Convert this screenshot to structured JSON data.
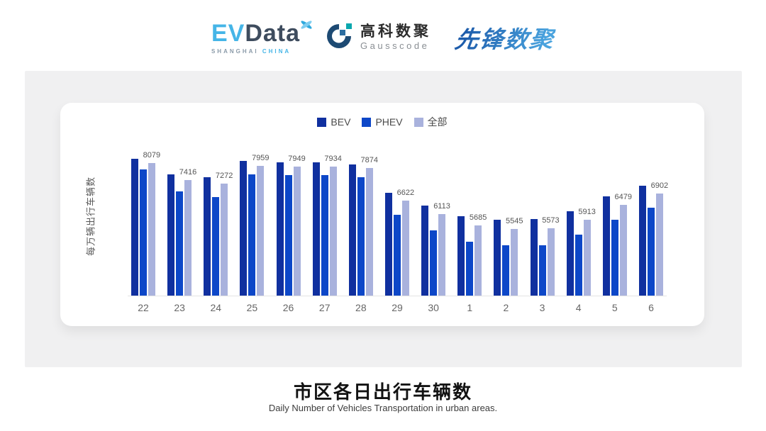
{
  "header": {
    "evdata_logo": {
      "ev": "EV",
      "data": "Data",
      "sub_left": "SHANGHAI",
      "sub_right": "CHINA"
    },
    "gausscode_logo": {
      "cn_name": "高科数聚",
      "en_name": "Gausscode"
    },
    "pioneer_logo": {
      "text": "先锋数聚"
    }
  },
  "chart_data": {
    "type": "bar",
    "title": "市区各日出行车辆数",
    "subtitle": "Daily Number of Vehicles Transportation in urban areas.",
    "ylabel": "每万辆出行车辆数",
    "xlabel": "",
    "categories": [
      "22",
      "23",
      "24",
      "25",
      "26",
      "27",
      "28",
      "29",
      "30",
      "1",
      "2",
      "3",
      "4",
      "5",
      "6"
    ],
    "series": [
      {
        "name": "BEV",
        "color": "#10309f",
        "values": [
          8230,
          7640,
          7530,
          8140,
          8110,
          8090,
          8030,
          6920,
          6450,
          6050,
          5910,
          5930,
          6220,
          6790,
          7210
        ]
      },
      {
        "name": "PHEV",
        "color": "#0d47c8",
        "values": [
          7840,
          6990,
          6760,
          7640,
          7620,
          7600,
          7540,
          6090,
          5500,
          5050,
          4930,
          4930,
          5330,
          5910,
          6360
        ]
      },
      {
        "name": "全部",
        "color": "#a9b2dd",
        "values": [
          8079,
          7416,
          7272,
          7959,
          7949,
          7934,
          7874,
          6622,
          6113,
          5685,
          5545,
          5573,
          5913,
          6479,
          6902
        ]
      }
    ],
    "label_series": "全部",
    "data_labels": [
      "8079",
      "7416",
      "7272",
      "7959",
      "7949",
      "7934",
      "7874",
      "6622",
      "6113",
      "5685",
      "5545",
      "5573",
      "5913",
      "6479",
      "6902"
    ],
    "ylim": [
      3000,
      9100
    ],
    "grid": false,
    "legend_position": "top-center",
    "colors": {
      "panel_bg": "#f0f0f1",
      "card_bg": "#ffffff",
      "axis_line": "#e3e3e3",
      "tick_text": "#666666",
      "label_text": "#555555"
    }
  }
}
